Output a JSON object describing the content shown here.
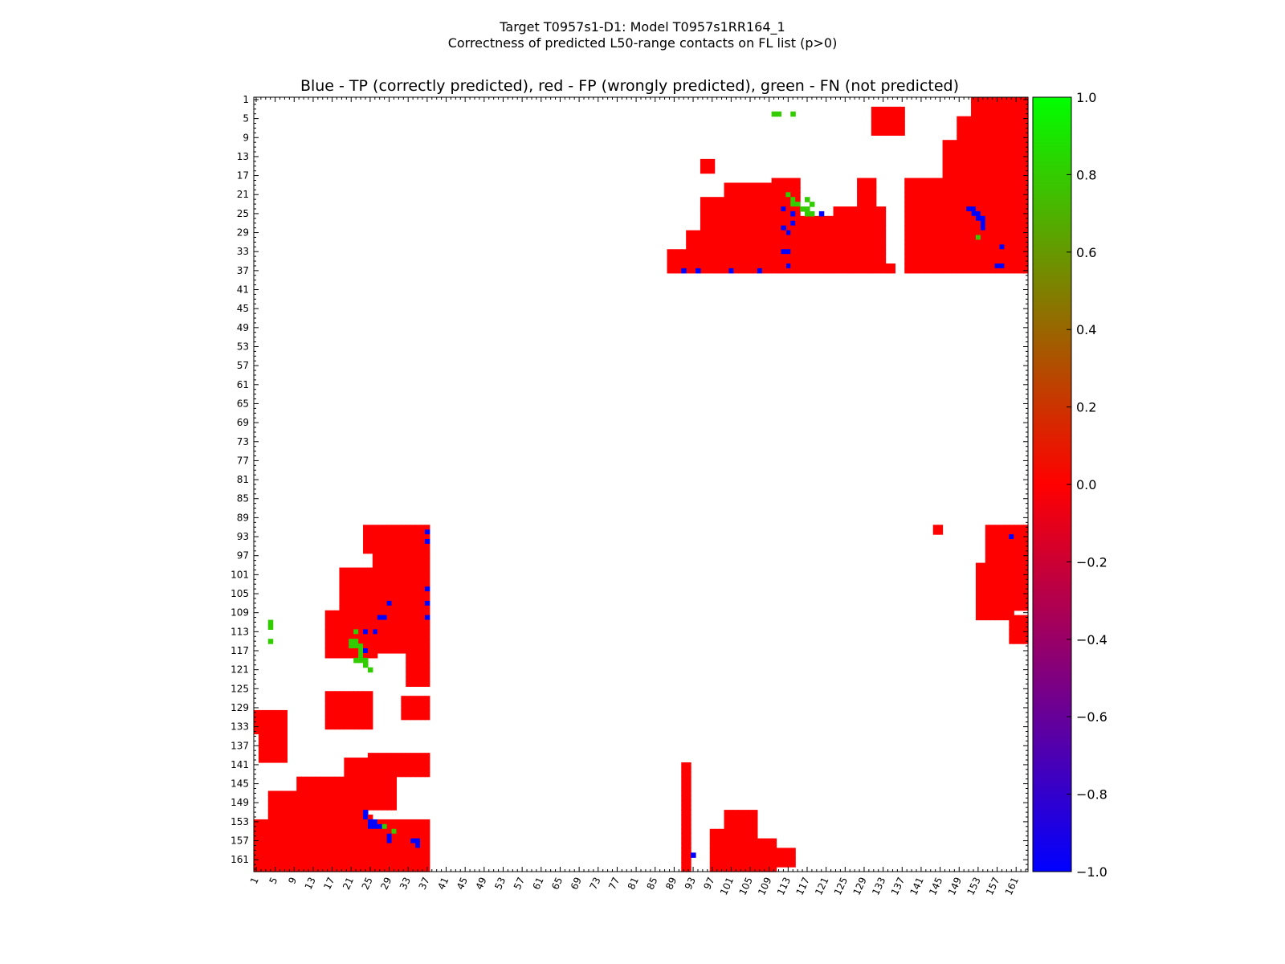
{
  "header": {
    "line1": "Target T0957s1-D1: Model T0957s1RR164_1",
    "line2": "Correctness of predicted L50-range contacts on FL list (p>0)"
  },
  "chart_data": {
    "type": "heatmap",
    "title": "Blue - TP (correctly predicted), red - FP (wrongly predicted), green - FN (not predicted)",
    "n_residues": 163,
    "x_ticks": [
      1,
      5,
      9,
      13,
      17,
      21,
      25,
      29,
      33,
      37,
      41,
      45,
      49,
      53,
      57,
      61,
      65,
      69,
      73,
      77,
      81,
      85,
      89,
      93,
      97,
      101,
      105,
      109,
      113,
      117,
      121,
      125,
      129,
      133,
      137,
      141,
      145,
      149,
      153,
      157,
      161
    ],
    "y_ticks": [
      1,
      5,
      9,
      13,
      17,
      21,
      25,
      29,
      33,
      37,
      41,
      45,
      49,
      53,
      57,
      61,
      65,
      69,
      73,
      77,
      81,
      85,
      89,
      93,
      97,
      101,
      105,
      109,
      113,
      117,
      121,
      125,
      129,
      133,
      137,
      141,
      145,
      149,
      153,
      157,
      161
    ],
    "colorbar": {
      "min": -1.0,
      "max": 1.0,
      "ticks": [
        "1.0",
        "0.8",
        "0.6",
        "0.4",
        "0.2",
        "0.0",
        "−0.2",
        "−0.4",
        "−0.6",
        "−0.8",
        "−1.0"
      ],
      "colors": [
        "#0000ff",
        "#ff0000",
        "#00ff00"
      ]
    },
    "legend": {
      "tp": "Blue - TP (correctly predicted)",
      "fp": "red - FP (wrongly predicted)",
      "fn": "green - FN (not predicted)"
    },
    "cell_colors": {
      "fp": "#ff0000",
      "tp": "#0000ff",
      "fn": "#33cc00"
    },
    "fp_regions": [
      [
        1,
        37,
        152,
        163
      ],
      [
        3,
        8,
        131,
        137
      ],
      [
        5,
        12,
        149,
        163
      ],
      [
        10,
        37,
        146,
        163
      ],
      [
        18,
        28,
        142,
        150
      ],
      [
        18,
        37,
        138,
        147
      ],
      [
        24,
        37,
        123,
        133
      ],
      [
        26,
        37,
        113,
        126
      ],
      [
        19,
        37,
        100,
        112
      ],
      [
        22,
        37,
        95,
        105
      ],
      [
        29,
        37,
        92,
        100
      ],
      [
        33,
        37,
        88,
        92
      ],
      [
        36,
        37,
        88,
        135
      ],
      [
        18,
        28,
        128,
        131
      ],
      [
        18,
        34,
        110,
        115
      ],
      [
        14,
        16,
        95,
        97
      ],
      [
        91,
        108,
        155,
        163
      ],
      [
        99,
        110,
        153,
        160
      ],
      [
        110,
        115,
        160,
        163
      ],
      [
        91,
        92,
        144,
        145
      ],
      [
        91,
        96,
        24,
        37
      ],
      [
        96,
        117,
        26,
        37
      ],
      [
        100,
        113,
        19,
        29
      ],
      [
        101,
        106,
        23,
        28
      ],
      [
        109,
        115,
        16,
        31
      ],
      [
        116,
        118,
        16,
        26
      ],
      [
        118,
        124,
        33,
        37
      ],
      [
        126,
        133,
        16,
        25
      ],
      [
        127,
        131,
        32,
        37
      ],
      [
        130,
        134,
        1,
        5
      ],
      [
        130,
        140,
        2,
        7
      ],
      [
        139,
        143,
        25,
        37
      ],
      [
        140,
        150,
        20,
        30
      ],
      [
        144,
        152,
        10,
        24
      ],
      [
        147,
        152,
        4,
        14
      ],
      [
        152,
        163,
        4,
        25
      ],
      [
        153,
        163,
        1,
        37
      ],
      [
        157,
        163,
        20,
        37
      ],
      [
        141,
        163,
        91,
        92
      ],
      [
        155,
        163,
        97,
        103
      ],
      [
        151,
        163,
        100,
        106
      ],
      [
        157,
        163,
        106,
        110
      ],
      [
        159,
        162,
        110,
        114
      ]
    ],
    "tp_cells": [
      [
        92,
        37
      ],
      [
        94,
        37
      ],
      [
        104,
        37
      ],
      [
        107,
        29
      ],
      [
        107,
        37
      ],
      [
        110,
        27
      ],
      [
        110,
        28
      ],
      [
        110,
        37
      ],
      [
        113,
        24
      ],
      [
        113,
        26
      ],
      [
        117,
        24
      ],
      [
        151,
        24
      ],
      [
        152,
        24
      ],
      [
        153,
        25
      ],
      [
        153,
        26
      ],
      [
        154,
        25
      ],
      [
        154,
        26
      ],
      [
        154,
        27
      ],
      [
        156,
        29
      ],
      [
        157,
        29
      ],
      [
        157,
        34
      ],
      [
        157,
        35
      ],
      [
        158,
        35
      ],
      [
        160,
        93
      ],
      [
        37,
        91
      ],
      [
        37,
        94
      ],
      [
        37,
        101
      ],
      [
        37,
        107
      ],
      [
        36,
        113
      ],
      [
        24,
        112
      ],
      [
        25,
        114
      ],
      [
        27,
        114
      ],
      [
        28,
        112
      ],
      [
        29,
        113
      ],
      [
        33,
        112
      ],
      [
        33,
        113
      ],
      [
        25,
        120
      ],
      [
        24,
        151
      ],
      [
        24,
        152
      ],
      [
        25,
        152
      ],
      [
        25,
        153
      ],
      [
        26,
        153
      ],
      [
        26,
        154
      ],
      [
        27,
        154
      ],
      [
        28,
        154
      ],
      [
        36,
        157
      ],
      [
        36,
        158
      ],
      [
        93,
        160
      ],
      [
        32,
        158
      ]
    ],
    "fn_cells": [
      [
        111,
        4
      ],
      [
        112,
        4
      ],
      [
        115,
        4
      ],
      [
        115,
        21
      ],
      [
        115,
        22
      ],
      [
        116,
        21
      ],
      [
        116,
        22
      ],
      [
        116,
        23
      ],
      [
        117,
        23
      ],
      [
        118,
        23
      ],
      [
        119,
        22
      ],
      [
        119,
        23
      ],
      [
        119,
        24
      ],
      [
        120,
        24
      ],
      [
        121,
        25
      ],
      [
        113,
        22
      ],
      [
        154,
        28
      ],
      [
        155,
        30
      ],
      [
        4,
        110
      ],
      [
        4,
        111
      ],
      [
        4,
        114
      ],
      [
        21,
        113
      ],
      [
        22,
        114
      ],
      [
        23,
        114
      ],
      [
        23,
        115
      ],
      [
        24,
        116
      ],
      [
        24,
        117
      ],
      [
        25,
        117
      ],
      [
        25,
        118
      ],
      [
        23,
        118
      ],
      [
        22,
        117
      ],
      [
        30,
        153
      ]
    ]
  }
}
